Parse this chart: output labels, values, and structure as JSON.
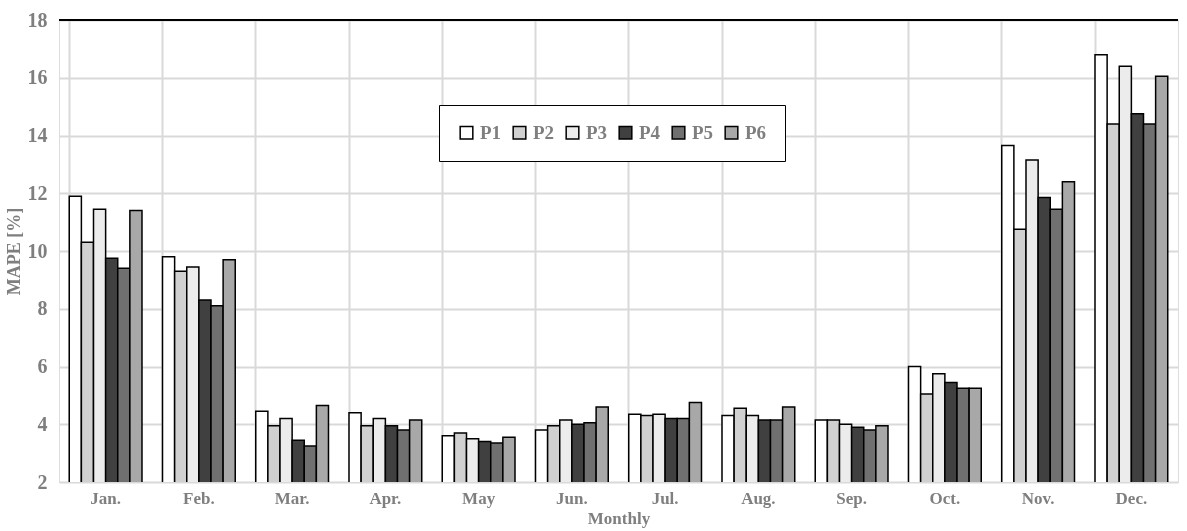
{
  "chart_data": {
    "type": "bar",
    "xlabel": "Monthly",
    "ylabel": "MAPE [%]",
    "categories": [
      "Jan.",
      "Feb.",
      "Mar.",
      "Apr.",
      "May",
      "Jun.",
      "Jul.",
      "Aug.",
      "Sep.",
      "Oct.",
      "Nov.",
      "Dec."
    ],
    "series": [
      {
        "name": "P1",
        "color": "#ffffff",
        "values": [
          11.9,
          9.8,
          4.45,
          4.4,
          3.6,
          3.8,
          4.35,
          4.3,
          4.15,
          6.0,
          13.65,
          16.8
        ]
      },
      {
        "name": "P2",
        "color": "#d0d0d0",
        "values": [
          10.3,
          9.3,
          3.95,
          3.95,
          3.7,
          3.95,
          4.3,
          4.55,
          4.15,
          5.05,
          10.75,
          14.4
        ]
      },
      {
        "name": "P3",
        "color": "#ececec",
        "values": [
          11.45,
          9.45,
          4.2,
          4.2,
          3.5,
          4.15,
          4.35,
          4.3,
          4.0,
          5.75,
          13.15,
          16.4
        ]
      },
      {
        "name": "P4",
        "color": "#404040",
        "values": [
          9.75,
          8.3,
          3.45,
          3.95,
          3.4,
          4.0,
          4.2,
          4.15,
          3.9,
          5.45,
          11.85,
          14.75
        ]
      },
      {
        "name": "P5",
        "color": "#707070",
        "values": [
          9.4,
          8.1,
          3.25,
          3.8,
          3.35,
          4.05,
          4.2,
          4.15,
          3.8,
          5.25,
          11.45,
          14.4
        ]
      },
      {
        "name": "P6",
        "color": "#a8a8a8",
        "values": [
          11.4,
          9.7,
          4.65,
          4.15,
          3.55,
          4.6,
          4.75,
          4.6,
          3.95,
          5.25,
          12.4,
          16.05
        ]
      }
    ],
    "ylim": [
      2,
      18
    ],
    "yticks": [
      2,
      4,
      6,
      8,
      10,
      12,
      14,
      16,
      18
    ],
    "grid": true,
    "legend": "top"
  }
}
